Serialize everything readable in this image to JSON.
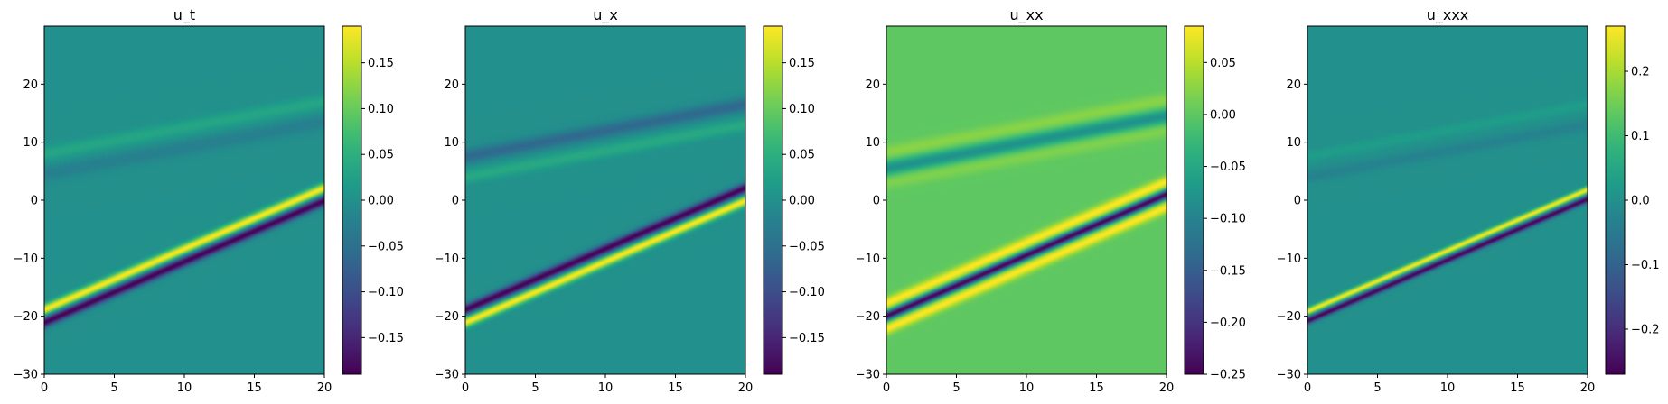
{
  "figure": {
    "colormap": "viridis",
    "viridis_stops": [
      "#440154",
      "#482878",
      "#3e4a89",
      "#31688e",
      "#26828e",
      "#1f9e89",
      "#35b779",
      "#6ece58",
      "#b5de2b",
      "#fde725"
    ]
  },
  "chart_data": [
    {
      "type": "heatmap",
      "title": "u_t",
      "xlim": [
        0,
        20
      ],
      "ylim": [
        -30,
        30
      ],
      "xticks": [
        0,
        5,
        10,
        15,
        20
      ],
      "yticks": [
        -30,
        -20,
        -10,
        0,
        10,
        20
      ],
      "xlabel": "",
      "ylabel": "",
      "colorbar": {
        "range": [
          -0.19,
          0.19
        ],
        "ticks": [
          -0.15,
          -0.1,
          -0.05,
          0.0,
          0.05,
          0.1,
          0.15
        ],
        "ticklabels": [
          "−0.15",
          "−0.10",
          "−0.05",
          "0.00",
          "0.05",
          "0.10",
          "0.15"
        ]
      },
      "field": {
        "background": 0.0,
        "waves": [
          {
            "y0": -20.0,
            "slope": 1.05,
            "terms": [
              {
                "offset": 1.1,
                "amp": 0.19,
                "width": 0.9
              },
              {
                "offset": -1.1,
                "amp": -0.19,
                "width": 0.9
              }
            ]
          },
          {
            "y0": 5.5,
            "slope": 0.45,
            "terms": [
              {
                "offset": 2.5,
                "amp": 0.035,
                "width": 1.3
              },
              {
                "offset": -1.0,
                "amp": -0.025,
                "width": 1.3
              }
            ]
          }
        ]
      }
    },
    {
      "type": "heatmap",
      "title": "u_x",
      "xlim": [
        0,
        20
      ],
      "ylim": [
        -30,
        30
      ],
      "xticks": [
        0,
        5,
        10,
        15,
        20
      ],
      "yticks": [
        -30,
        -20,
        -10,
        0,
        10,
        20
      ],
      "xlabel": "",
      "ylabel": "",
      "colorbar": {
        "range": [
          -0.19,
          0.19
        ],
        "ticks": [
          -0.15,
          -0.1,
          -0.05,
          0.0,
          0.05,
          0.1,
          0.15
        ],
        "ticklabels": [
          "−0.15",
          "−0.10",
          "−0.05",
          "0.00",
          "0.05",
          "0.10",
          "0.15"
        ]
      },
      "field": {
        "background": 0.0,
        "waves": [
          {
            "y0": -20.0,
            "slope": 1.05,
            "terms": [
              {
                "offset": 1.1,
                "amp": -0.19,
                "width": 0.9
              },
              {
                "offset": -1.1,
                "amp": 0.19,
                "width": 0.9
              }
            ]
          },
          {
            "y0": 5.5,
            "slope": 0.45,
            "terms": [
              {
                "offset": 2.0,
                "amp": -0.06,
                "width": 1.2
              },
              {
                "offset": -1.5,
                "amp": 0.04,
                "width": 1.2
              }
            ]
          }
        ]
      }
    },
    {
      "type": "heatmap",
      "title": "u_xx",
      "xlim": [
        0,
        20
      ],
      "ylim": [
        -30,
        30
      ],
      "xticks": [
        0,
        5,
        10,
        15,
        20
      ],
      "yticks": [
        -30,
        -20,
        -10,
        0,
        10,
        20
      ],
      "xlabel": "",
      "ylabel": "",
      "colorbar": {
        "range": [
          -0.25,
          0.085
        ],
        "ticks": [
          -0.25,
          -0.2,
          -0.15,
          -0.1,
          -0.05,
          0.0,
          0.05
        ],
        "ticklabels": [
          "−0.25",
          "−0.20",
          "−0.15",
          "−0.10",
          "−0.05",
          "0.00",
          "0.05"
        ]
      },
      "field": {
        "background": 0.0,
        "waves": [
          {
            "y0": -20.0,
            "slope": 1.05,
            "terms": [
              {
                "offset": 0.0,
                "amp": -0.25,
                "width": 0.8
              },
              {
                "offset": 2.2,
                "amp": 0.085,
                "width": 1.0
              },
              {
                "offset": -2.2,
                "amp": 0.085,
                "width": 1.0
              }
            ]
          },
          {
            "y0": 5.5,
            "slope": 0.45,
            "terms": [
              {
                "offset": 0.0,
                "amp": -0.08,
                "width": 1.2
              },
              {
                "offset": 2.8,
                "amp": 0.025,
                "width": 1.2
              },
              {
                "offset": -2.5,
                "amp": 0.02,
                "width": 1.2
              }
            ]
          }
        ]
      }
    },
    {
      "type": "heatmap",
      "title": "u_xxx",
      "xlim": [
        0,
        20
      ],
      "ylim": [
        -30,
        30
      ],
      "xticks": [
        0,
        5,
        10,
        15,
        20
      ],
      "yticks": [
        -30,
        -20,
        -10,
        0,
        10,
        20
      ],
      "xlabel": "",
      "ylabel": "",
      "colorbar": {
        "range": [
          -0.27,
          0.27
        ],
        "ticks": [
          -0.2,
          -0.1,
          0.0,
          0.1,
          0.2
        ],
        "ticklabels": [
          "−0.2",
          "−0.1",
          "0.0",
          "0.1",
          "0.2"
        ]
      },
      "field": {
        "background": 0.0,
        "waves": [
          {
            "y0": -20.0,
            "slope": 1.05,
            "terms": [
              {
                "offset": 0.8,
                "amp": 0.27,
                "width": 0.6
              },
              {
                "offset": -0.8,
                "amp": -0.27,
                "width": 0.6
              }
            ]
          },
          {
            "y0": 5.5,
            "slope": 0.45,
            "terms": [
              {
                "offset": 2.0,
                "amp": 0.03,
                "width": 1.0
              },
              {
                "offset": -1.5,
                "amp": -0.03,
                "width": 1.0
              }
            ]
          }
        ]
      }
    }
  ]
}
